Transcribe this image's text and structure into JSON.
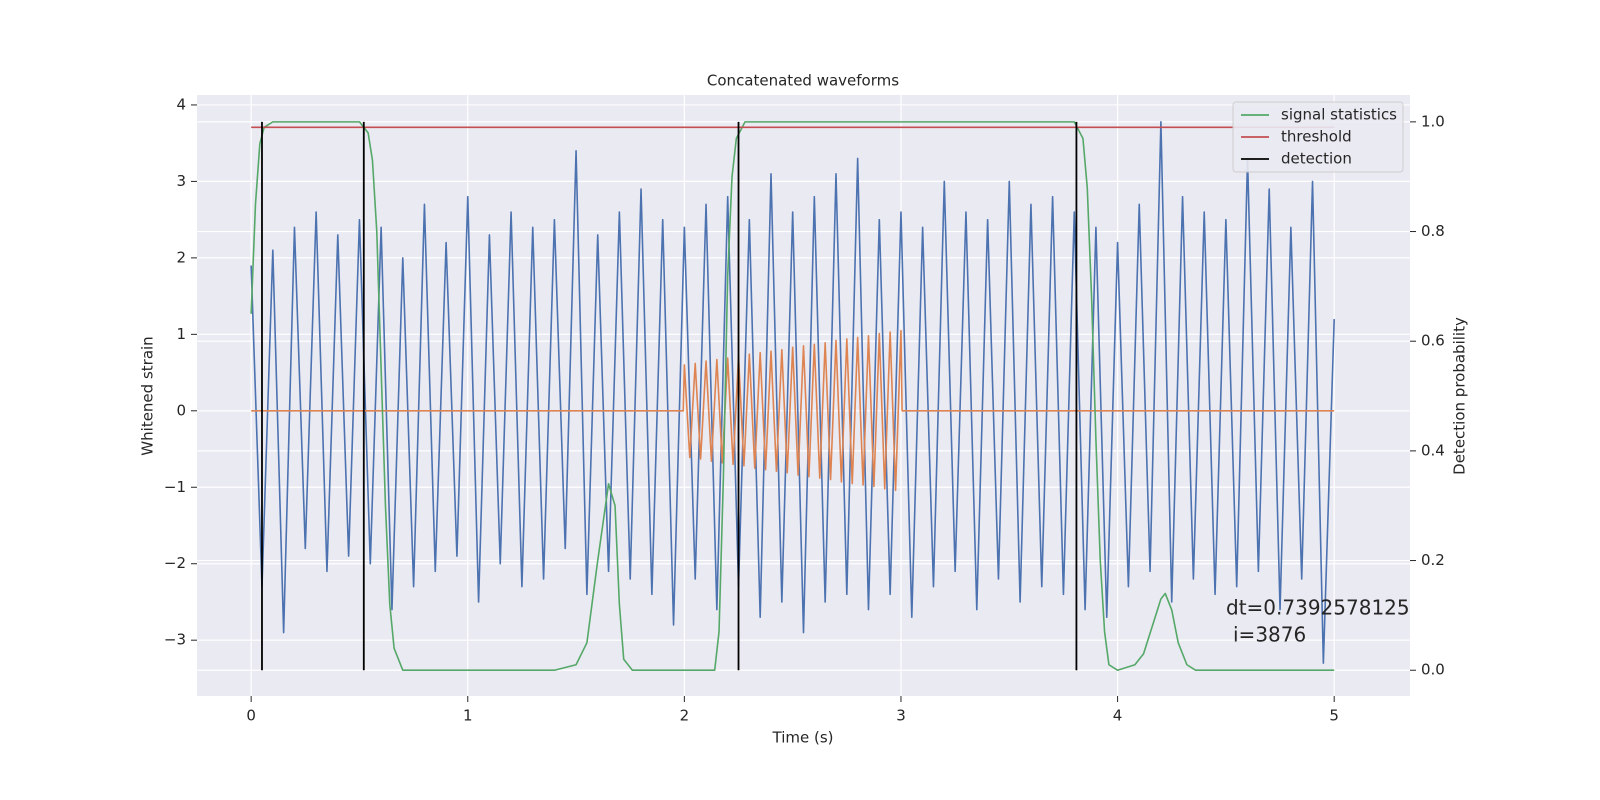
{
  "chart_data": {
    "type": "line",
    "title": "Concatenated waveforms",
    "xlabel": "Time (s)",
    "ylabel": "Whitened strain",
    "y2label": "Detection probability",
    "annotation": [
      "dt=0.7392578125",
      "i=3876"
    ],
    "xlim": [
      -0.25,
      5.35
    ],
    "ylim": [
      -3.73,
      4.13
    ],
    "y2lim": [
      -0.047,
      1.049
    ],
    "xticks": [
      0,
      1,
      2,
      3,
      4,
      5
    ],
    "yticks": [
      {
        "value": -3,
        "label": "−3"
      },
      {
        "value": -2,
        "label": "−2"
      },
      {
        "value": -1,
        "label": "−1"
      },
      0,
      1,
      2,
      3,
      4
    ],
    "y2ticks": [
      {
        "value": 0,
        "label": "0.0"
      },
      0.2,
      0.4,
      0.6,
      0.8,
      {
        "value": 1,
        "label": "1.0"
      }
    ],
    "grid": true,
    "legend": "upper right",
    "series": [
      {
        "color": "#4c72b0",
        "x": [
          0,
          0.05,
          0.1,
          0.15,
          0.2,
          0.25,
          0.3,
          0.35,
          0.4,
          0.45,
          0.5,
          0.55,
          0.6,
          0.65,
          0.7,
          0.75,
          0.8,
          0.85,
          0.9,
          0.95,
          1,
          1.05,
          1.1,
          1.15,
          1.2,
          1.25,
          1.3,
          1.35,
          1.4,
          1.45,
          1.5,
          1.55,
          1.6,
          1.65,
          1.7,
          1.75,
          1.8,
          1.85,
          1.9,
          1.95,
          2,
          2.05,
          2.1,
          2.15,
          2.2,
          2.25,
          2.3,
          2.35,
          2.4,
          2.45,
          2.5,
          2.55,
          2.6,
          2.65,
          2.7,
          2.75,
          2.8,
          2.85,
          2.9,
          2.95,
          3,
          3.05,
          3.1,
          3.15,
          3.2,
          3.25,
          3.3,
          3.35,
          3.4,
          3.45,
          3.5,
          3.55,
          3.6,
          3.65,
          3.7,
          3.75,
          3.8,
          3.85,
          3.9,
          3.95,
          4,
          4.05,
          4.1,
          4.15,
          4.2,
          4.25,
          4.3,
          4.35,
          4.4,
          4.45,
          4.5,
          4.55,
          4.6,
          4.65,
          4.7,
          4.75,
          4.8,
          4.85,
          4.9,
          4.95,
          5
        ],
        "values": [
          1.9,
          -2.3,
          2.1,
          -2.9,
          2.4,
          -1.8,
          2.6,
          -2.1,
          2.3,
          -1.9,
          2.5,
          -2.0,
          2.4,
          -2.6,
          2.0,
          -2.3,
          2.7,
          -2.1,
          2.2,
          -1.9,
          2.8,
          -2.5,
          2.3,
          -2.0,
          2.6,
          -2.3,
          2.4,
          -2.2,
          2.5,
          -1.8,
          3.4,
          -2.4,
          2.3,
          -2.1,
          2.6,
          -2.2,
          2.9,
          -2.4,
          2.5,
          -2.8,
          2.4,
          -2.2,
          2.7,
          -2.6,
          2.8,
          -2.3,
          2.5,
          -2.7,
          3.1,
          -2.5,
          2.6,
          -2.9,
          2.8,
          -2.5,
          3.1,
          -2.4,
          3.3,
          -2.6,
          2.5,
          -2.4,
          2.6,
          -2.7,
          2.4,
          -2.3,
          3.0,
          -2.1,
          2.6,
          -2.6,
          2.5,
          -2.2,
          3.0,
          -2.5,
          2.7,
          -2.3,
          2.8,
          -2.4,
          2.6,
          -2.6,
          2.4,
          -2.7,
          2.2,
          -2.3,
          2.7,
          -2.1,
          3.78,
          -2.5,
          2.8,
          -2.2,
          2.6,
          -2.4,
          2.5,
          -2.3,
          3.3,
          -2.1,
          2.9,
          -2.6,
          2.4,
          -2.2,
          3.0,
          -3.3,
          1.2
        ]
      },
      {
        "color": "#dd8452",
        "x": [
          0,
          1.995,
          2,
          2.025,
          2.05,
          2.075,
          2.1,
          2.125,
          2.15,
          2.175,
          2.2,
          2.225,
          2.25,
          2.275,
          2.3,
          2.325,
          2.35,
          2.375,
          2.4,
          2.425,
          2.45,
          2.475,
          2.5,
          2.525,
          2.55,
          2.575,
          2.6,
          2.625,
          2.65,
          2.675,
          2.7,
          2.725,
          2.75,
          2.775,
          2.8,
          2.825,
          2.85,
          2.875,
          2.9,
          2.925,
          2.95,
          2.975,
          3,
          3.005,
          5
        ],
        "values": [
          0,
          0,
          0.6,
          -0.61,
          0.62,
          -0.63,
          0.65,
          -0.66,
          0.67,
          -0.68,
          0.69,
          -0.7,
          0.71,
          -0.72,
          0.74,
          -0.75,
          0.76,
          -0.77,
          0.78,
          -0.79,
          0.8,
          -0.81,
          0.83,
          -0.84,
          0.85,
          -0.86,
          0.87,
          -0.88,
          0.89,
          -0.9,
          0.92,
          -0.93,
          0.94,
          -0.95,
          0.96,
          -0.97,
          0.98,
          -0.99,
          1.01,
          -1.02,
          1.03,
          -1.04,
          1.05,
          0,
          0
        ]
      },
      {
        "name": "signal statistics",
        "color": "#55a868",
        "axis": "y2",
        "x": [
          0,
          0.02,
          0.04,
          0.06,
          0.1,
          0.5,
          0.54,
          0.56,
          0.58,
          0.6,
          0.62,
          0.64,
          0.66,
          0.7,
          1.4,
          1.5,
          1.55,
          1.6,
          1.65,
          1.68,
          1.7,
          1.72,
          1.76,
          2.14,
          2.16,
          2.18,
          2.2,
          2.22,
          2.24,
          2.28,
          3.8,
          3.84,
          3.86,
          3.88,
          3.9,
          3.92,
          3.94,
          3.96,
          4,
          4.08,
          4.12,
          4.16,
          4.2,
          4.22,
          4.25,
          4.28,
          4.32,
          4.36,
          5
        ],
        "values": [
          0.65,
          0.85,
          0.96,
          0.99,
          1,
          1,
          0.98,
          0.93,
          0.8,
          0.55,
          0.3,
          0.12,
          0.04,
          0,
          0,
          0.01,
          0.05,
          0.2,
          0.34,
          0.3,
          0.12,
          0.02,
          0,
          0,
          0.07,
          0.35,
          0.72,
          0.9,
          0.97,
          1,
          1,
          0.97,
          0.88,
          0.68,
          0.42,
          0.2,
          0.07,
          0.01,
          0,
          0.01,
          0.03,
          0.08,
          0.13,
          0.14,
          0.11,
          0.05,
          0.01,
          0,
          0
        ]
      },
      {
        "name": "threshold",
        "color": "#c44e52",
        "axis": "y2",
        "x": [
          0,
          5
        ],
        "values": [
          0.99,
          0.99
        ]
      },
      {
        "name": "detection",
        "color": "#000000",
        "axis": "y2",
        "type": "vlines",
        "x": [
          0.05,
          0.52,
          2.25,
          3.81
        ],
        "ymin": 0,
        "ymax": 1
      }
    ]
  }
}
